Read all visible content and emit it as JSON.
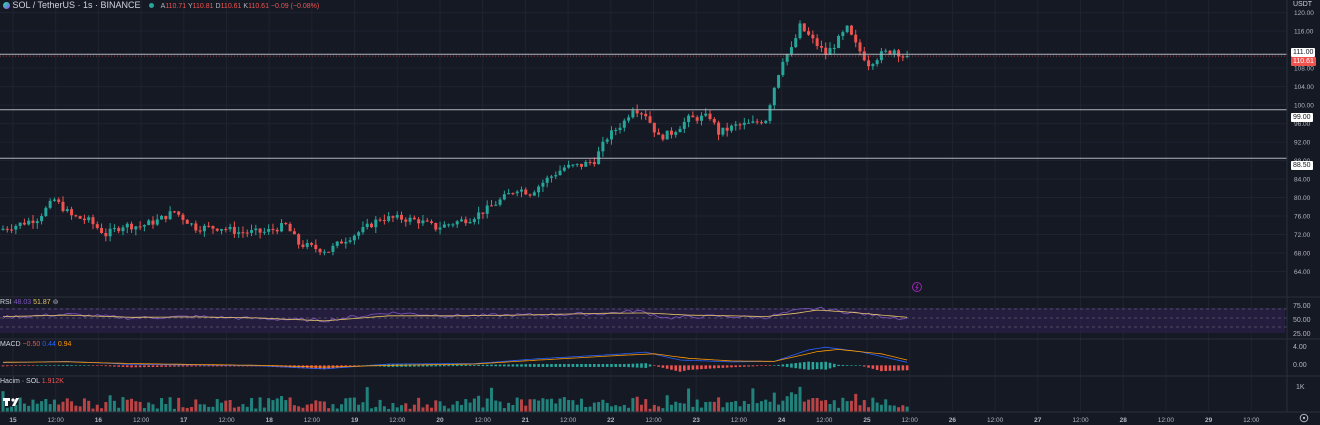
{
  "header": {
    "symbol": "SOL / TetherUS · 1s · BINANCE",
    "o_label": "A",
    "o": "110.71",
    "h_label": "Y",
    "h": "110.81",
    "l_label": "D",
    "l": "110.61",
    "c_label": "K",
    "c": "110.61",
    "change": "−0.09 (−0.08%)",
    "currency": "USDT"
  },
  "indicators": {
    "rsi": {
      "label": "RSI",
      "v1": "48.03",
      "v2": "51.87"
    },
    "macd": {
      "label": "MACD",
      "v1": "−0.50",
      "v2": "0.44",
      "v3": "0.94"
    },
    "volume": {
      "label": "Hacim · SOL",
      "value": "1.912K"
    }
  },
  "colors": {
    "bg": "#151924",
    "up": "#26a69a",
    "down": "#ef5350",
    "grid": "#1f2330",
    "rsi_line": "#7e57c2",
    "rsi_ma": "#e8c867",
    "rsi_band": "#2a1f45",
    "macd_line": "#2962ff",
    "signal_line": "#ff9800",
    "level_line": "#b2b5be"
  },
  "chart_data": {
    "type": "candlestick",
    "x_ticks": [
      "15",
      "12:00",
      "16",
      "12:00",
      "17",
      "12:00",
      "18",
      "12:00",
      "19",
      "12:00",
      "20",
      "12:00",
      "21",
      "12:00",
      "22",
      "12:00",
      "23",
      "12:00",
      "24",
      "12:00",
      "25",
      "12:00",
      "26",
      "12:00",
      "27",
      "12:00",
      "28",
      "12:00",
      "29",
      "12:00"
    ],
    "y_ticks": [
      "64.00",
      "68.00",
      "72.00",
      "76.00",
      "80.00",
      "84.00",
      "88.00",
      "92.00",
      "96.00",
      "100.00",
      "104.00",
      "108.00",
      "116.00",
      "120.00"
    ],
    "ylim": [
      60,
      121
    ],
    "levels": [
      {
        "value": 111.0,
        "label": "111.00"
      },
      {
        "value": 99.0,
        "label": "99.00"
      },
      {
        "value": 88.5,
        "label": "88.50"
      }
    ],
    "last_price": {
      "value": 110.61,
      "label": "110.61"
    },
    "anchors": [
      [
        0,
        73
      ],
      [
        4,
        74
      ],
      [
        9,
        75.5
      ],
      [
        13,
        79.5
      ],
      [
        17,
        76
      ],
      [
        21,
        75
      ],
      [
        25,
        72
      ],
      [
        29,
        74
      ],
      [
        33,
        73.8
      ],
      [
        37,
        75
      ],
      [
        41,
        77
      ],
      [
        46,
        73.5
      ],
      [
        52,
        73.5
      ],
      [
        56,
        72.5
      ],
      [
        62,
        72.5
      ],
      [
        67,
        74
      ],
      [
        70,
        70
      ],
      [
        74,
        69
      ],
      [
        77,
        68.5
      ],
      [
        80,
        70.5
      ],
      [
        85,
        73
      ],
      [
        89,
        75.5
      ],
      [
        94,
        75.5
      ],
      [
        98,
        75
      ],
      [
        102,
        73.5
      ],
      [
        106,
        74.5
      ],
      [
        110,
        75.5
      ],
      [
        114,
        77.5
      ],
      [
        118,
        80
      ],
      [
        121,
        82
      ],
      [
        124,
        81
      ],
      [
        128,
        84
      ],
      [
        132,
        86.5
      ],
      [
        136,
        87
      ],
      [
        139,
        88
      ],
      [
        142,
        93
      ],
      [
        146,
        96.5
      ],
      [
        148,
        99.5
      ],
      [
        151,
        98
      ],
      [
        154,
        93
      ],
      [
        157,
        94
      ],
      [
        161,
        97
      ],
      [
        166,
        97.5
      ],
      [
        168,
        94
      ],
      [
        172,
        95.5
      ],
      [
        176,
        96
      ],
      [
        179,
        97
      ],
      [
        181,
        104
      ],
      [
        183,
        110
      ],
      [
        185,
        112
      ],
      [
        187,
        117
      ],
      [
        190,
        114
      ],
      [
        193,
        111
      ],
      [
        195,
        113
      ],
      [
        198,
        116.5
      ],
      [
        200,
        113
      ],
      [
        203,
        109
      ],
      [
        206,
        111
      ],
      [
        209,
        112
      ],
      [
        211,
        110.61
      ]
    ],
    "rsi": {
      "ylim": [
        0,
        100
      ],
      "levels": [
        75,
        50,
        25
      ],
      "labels": [
        "75.00",
        "50.00",
        "25.00"
      ],
      "anchors": [
        [
          0,
          52
        ],
        [
          15,
          60
        ],
        [
          30,
          50
        ],
        [
          45,
          54
        ],
        [
          60,
          48
        ],
        [
          75,
          43
        ],
        [
          90,
          65
        ],
        [
          105,
          56
        ],
        [
          120,
          58
        ],
        [
          140,
          62
        ],
        [
          148,
          70
        ],
        [
          155,
          50
        ],
        [
          165,
          55
        ],
        [
          178,
          52
        ],
        [
          185,
          70
        ],
        [
          190,
          77
        ],
        [
          198,
          65
        ],
        [
          205,
          55
        ],
        [
          211,
          48
        ]
      ],
      "ma_anchors": [
        [
          0,
          54
        ],
        [
          15,
          58
        ],
        [
          30,
          52
        ],
        [
          45,
          53
        ],
        [
          60,
          50
        ],
        [
          75,
          42
        ],
        [
          90,
          56
        ],
        [
          105,
          56
        ],
        [
          120,
          58
        ],
        [
          140,
          63
        ],
        [
          150,
          64
        ],
        [
          160,
          58
        ],
        [
          170,
          56
        ],
        [
          178,
          54
        ],
        [
          185,
          63
        ],
        [
          190,
          72
        ],
        [
          198,
          66
        ],
        [
          205,
          58
        ],
        [
          211,
          52
        ]
      ]
    },
    "macd": {
      "ylim": [
        -1.5,
        5.5
      ],
      "labels": [
        "4.00",
        "0.00"
      ],
      "line_anchors": [
        [
          0,
          0.6
        ],
        [
          15,
          0.9
        ],
        [
          30,
          0.2
        ],
        [
          45,
          0.1
        ],
        [
          60,
          -0.1
        ],
        [
          75,
          -0.8
        ],
        [
          90,
          0.3
        ],
        [
          110,
          0.4
        ],
        [
          125,
          1.5
        ],
        [
          145,
          2.6
        ],
        [
          150,
          3.0
        ],
        [
          158,
          1.2
        ],
        [
          170,
          0.8
        ],
        [
          180,
          0.9
        ],
        [
          188,
          3.5
        ],
        [
          192,
          4.1
        ],
        [
          200,
          3.1
        ],
        [
          211,
          0.7
        ]
      ],
      "signal_anchors": [
        [
          0,
          0.7
        ],
        [
          15,
          0.8
        ],
        [
          30,
          0.4
        ],
        [
          45,
          0.2
        ],
        [
          60,
          0.0
        ],
        [
          75,
          -0.4
        ],
        [
          90,
          0.0
        ],
        [
          110,
          0.3
        ],
        [
          125,
          1.2
        ],
        [
          145,
          2.3
        ],
        [
          152,
          2.6
        ],
        [
          160,
          1.6
        ],
        [
          170,
          1.0
        ],
        [
          180,
          0.9
        ],
        [
          190,
          3.1
        ],
        [
          195,
          3.6
        ],
        [
          205,
          2.6
        ],
        [
          211,
          1.2
        ]
      ]
    },
    "volume": {
      "label": "1K"
    }
  }
}
